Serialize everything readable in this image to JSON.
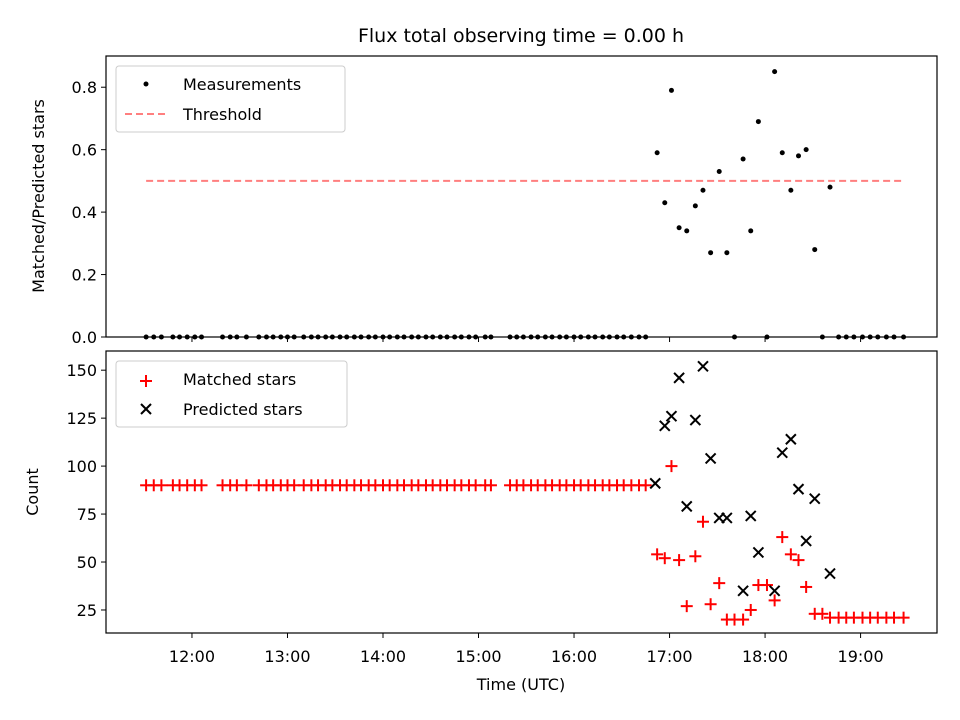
{
  "chart_data": [
    {
      "type": "scatter",
      "title": "Flux total observing time = 0.00 h",
      "xlabel": "",
      "ylabel": "Matched/Predicted stars",
      "ylim": [
        0,
        0.9
      ],
      "yticks": [
        "0.0",
        "0.2",
        "0.4",
        "0.6",
        "0.8"
      ],
      "grid": false,
      "legend": "top-left",
      "series": [
        {
          "name": "Measurements",
          "marker": "dot",
          "color": "#000000",
          "x": [
            11.52,
            11.6,
            11.68,
            11.8,
            11.87,
            11.95,
            12.03,
            12.1,
            12.32,
            12.4,
            12.47,
            12.57,
            12.7,
            12.78,
            12.85,
            12.93,
            13.0,
            13.07,
            13.17,
            13.25,
            13.32,
            13.4,
            13.47,
            13.55,
            13.62,
            13.7,
            13.77,
            13.85,
            13.92,
            14.0,
            14.07,
            14.15,
            14.22,
            14.3,
            14.37,
            14.45,
            14.52,
            14.6,
            14.67,
            14.75,
            14.82,
            14.9,
            14.97,
            15.07,
            15.13,
            15.33,
            15.4,
            15.47,
            15.55,
            15.62,
            15.7,
            15.77,
            15.85,
            15.92,
            16.0,
            16.07,
            16.15,
            16.22,
            16.3,
            16.37,
            16.45,
            16.52,
            16.6,
            16.68,
            16.75,
            16.87,
            16.95,
            17.02,
            17.1,
            17.18,
            17.27,
            17.35,
            17.43,
            17.52,
            17.6,
            17.68,
            17.77,
            17.85,
            17.93,
            18.02,
            18.1,
            18.18,
            18.27,
            18.35,
            18.43,
            18.52,
            18.6,
            18.68,
            18.77,
            18.85,
            18.93,
            19.02,
            19.1,
            19.18,
            19.27,
            19.35,
            19.45
          ],
          "y": [
            0,
            0,
            0,
            0,
            0,
            0,
            0,
            0,
            0,
            0,
            0,
            0,
            0,
            0,
            0,
            0,
            0,
            0,
            0,
            0,
            0,
            0,
            0,
            0,
            0,
            0,
            0,
            0,
            0,
            0,
            0,
            0,
            0,
            0,
            0,
            0,
            0,
            0,
            0,
            0,
            0,
            0,
            0,
            0,
            0,
            0,
            0,
            0,
            0,
            0,
            0,
            0,
            0,
            0,
            0,
            0,
            0,
            0,
            0,
            0,
            0,
            0,
            0,
            0,
            0,
            0.59,
            0.43,
            0.79,
            0.35,
            0.34,
            0.42,
            0.47,
            0.27,
            0.53,
            0.27,
            0,
            0.57,
            0.34,
            0.69,
            0,
            0.85,
            0.59,
            0.47,
            0.58,
            0.6,
            0.28,
            0,
            0.48,
            0,
            0,
            0,
            0,
            0,
            0,
            0,
            0,
            0
          ]
        },
        {
          "name": "Threshold",
          "marker": "dashed-line",
          "color": "#ff7f7f",
          "x": [
            11.52,
            19.45
          ],
          "y": [
            0.5,
            0.5
          ]
        }
      ]
    },
    {
      "type": "scatter",
      "title": "",
      "xlabel": "Time (UTC)",
      "ylabel": "Count",
      "xlim": [
        11.1,
        19.8
      ],
      "xticks": [
        {
          "value": 12,
          "label": "12:00"
        },
        {
          "value": 13,
          "label": "13:00"
        },
        {
          "value": 14,
          "label": "14:00"
        },
        {
          "value": 15,
          "label": "15:00"
        },
        {
          "value": 16,
          "label": "16:00"
        },
        {
          "value": 17,
          "label": "17:00"
        },
        {
          "value": 18,
          "label": "18:00"
        },
        {
          "value": 19,
          "label": "19:00"
        }
      ],
      "ylim": [
        13,
        160
      ],
      "yticks": [
        "25",
        "50",
        "75",
        "100",
        "125",
        "150"
      ],
      "grid": false,
      "legend": "top-left",
      "series": [
        {
          "name": "Matched stars",
          "marker": "plus",
          "color": "#ff0000",
          "x": [
            11.52,
            11.6,
            11.68,
            11.8,
            11.87,
            11.95,
            12.03,
            12.1,
            12.32,
            12.4,
            12.47,
            12.57,
            12.7,
            12.78,
            12.85,
            12.93,
            13.0,
            13.07,
            13.17,
            13.25,
            13.32,
            13.4,
            13.47,
            13.55,
            13.62,
            13.7,
            13.77,
            13.85,
            13.92,
            14.0,
            14.07,
            14.15,
            14.22,
            14.3,
            14.37,
            14.45,
            14.52,
            14.6,
            14.67,
            14.75,
            14.82,
            14.9,
            14.97,
            15.07,
            15.13,
            15.33,
            15.4,
            15.47,
            15.55,
            15.62,
            15.7,
            15.77,
            15.85,
            15.92,
            16.0,
            16.07,
            16.15,
            16.22,
            16.3,
            16.37,
            16.45,
            16.52,
            16.6,
            16.68,
            16.75,
            16.87,
            16.95,
            17.02,
            17.1,
            17.18,
            17.27,
            17.35,
            17.43,
            17.52,
            17.6,
            17.68,
            17.77,
            17.85,
            17.93,
            18.02,
            18.1,
            18.18,
            18.27,
            18.35,
            18.43,
            18.52,
            18.6,
            18.68,
            18.77,
            18.85,
            18.93,
            19.02,
            19.1,
            19.18,
            19.27,
            19.35,
            19.45
          ],
          "y": [
            90,
            90,
            90,
            90,
            90,
            90,
            90,
            90,
            90,
            90,
            90,
            90,
            90,
            90,
            90,
            90,
            90,
            90,
            90,
            90,
            90,
            90,
            90,
            90,
            90,
            90,
            90,
            90,
            90,
            90,
            90,
            90,
            90,
            90,
            90,
            90,
            90,
            90,
            90,
            90,
            90,
            90,
            90,
            90,
            90,
            90,
            90,
            90,
            90,
            90,
            90,
            90,
            90,
            90,
            90,
            90,
            90,
            90,
            90,
            90,
            90,
            90,
            90,
            90,
            90,
            54,
            52,
            100,
            51,
            27,
            53,
            71,
            28,
            39,
            20,
            20,
            20,
            25,
            38,
            38,
            30,
            63,
            54,
            51,
            37,
            23,
            23,
            21,
            21,
            21,
            21,
            21,
            21,
            21,
            21,
            21,
            21
          ]
        },
        {
          "name": "Predicted stars",
          "marker": "x",
          "color": "#000000",
          "x": [
            16.85,
            16.95,
            17.02,
            17.1,
            17.18,
            17.27,
            17.35,
            17.43,
            17.52,
            17.6,
            17.77,
            17.85,
            17.93,
            18.1,
            18.18,
            18.27,
            18.35,
            18.43,
            18.52,
            18.68
          ],
          "y": [
            91,
            121,
            126,
            146,
            79,
            124,
            152,
            104,
            73,
            73,
            35,
            74,
            55,
            35,
            107,
            114,
            88,
            61,
            83,
            44
          ]
        }
      ]
    }
  ]
}
